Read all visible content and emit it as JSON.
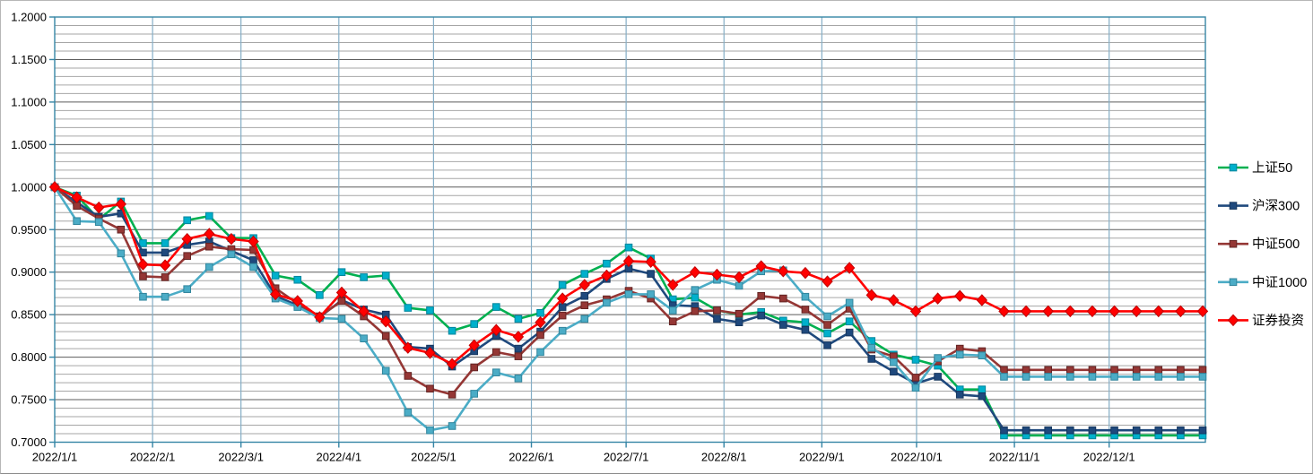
{
  "chart_data": {
    "type": "line",
    "title": "",
    "grid": true,
    "legend_position": "right",
    "y_axis": {
      "min": 0.7,
      "max": 1.2,
      "major_step": 0.05,
      "minor_step": 0.01,
      "labels": [
        "1.2000",
        "1.1500",
        "1.1000",
        "1.0500",
        "1.0000",
        "0.9500",
        "0.9000",
        "0.8500",
        "0.8000",
        "0.7500",
        "0.7000"
      ]
    },
    "x_axis": {
      "labels": [
        "2022/1/1",
        "2022/2/1",
        "2022/3/1",
        "2022/4/1",
        "2022/5/1",
        "2022/6/1",
        "2022/7/1",
        "2022/8/1",
        "2022/9/1",
        "2022/10/1",
        "2022/11/1",
        "2022/12/1"
      ],
      "month_day_offsets": [
        0,
        31,
        59,
        90,
        120,
        151,
        181,
        212,
        243,
        273,
        304,
        334
      ],
      "points": 53,
      "note": "weekly net-value points, flat after 2022/10/28"
    },
    "colors": {
      "axis": "#3585a5",
      "month_gridline": "#85aec6",
      "major_gridline": "#5b5b5b",
      "minor_gridline": "#a6a6a6",
      "label_text": "#000000"
    },
    "series": [
      {
        "name": "上证50",
        "line_color": "#00b050",
        "marker_color": "#00b0cc",
        "marker_border": "#00859c",
        "marker": "square",
        "values": [
          1.0,
          0.99,
          0.962,
          0.983,
          0.934,
          0.934,
          0.961,
          0.966,
          0.94,
          0.94,
          0.896,
          0.891,
          0.873,
          0.9,
          0.894,
          0.896,
          0.858,
          0.855,
          0.831,
          0.839,
          0.859,
          0.845,
          0.852,
          0.885,
          0.898,
          0.91,
          0.929,
          0.916,
          0.868,
          0.87,
          0.855,
          0.85,
          0.853,
          0.843,
          0.841,
          0.828,
          0.842,
          0.819,
          0.803,
          0.797,
          0.79,
          0.762,
          0.762,
          0.708,
          0.708,
          0.708,
          0.708,
          0.708,
          0.708,
          0.708,
          0.708,
          0.708,
          0.708
        ]
      },
      {
        "name": "沪深300",
        "line_color": "#1f497d",
        "marker_color": "#1f497d",
        "marker_border": "#17375e",
        "marker": "square",
        "values": [
          1.0,
          0.982,
          0.965,
          0.969,
          0.923,
          0.923,
          0.932,
          0.936,
          0.925,
          0.914,
          0.872,
          0.861,
          0.847,
          0.867,
          0.856,
          0.85,
          0.812,
          0.81,
          0.789,
          0.807,
          0.825,
          0.81,
          0.83,
          0.859,
          0.872,
          0.892,
          0.904,
          0.898,
          0.861,
          0.86,
          0.845,
          0.841,
          0.849,
          0.838,
          0.832,
          0.814,
          0.829,
          0.798,
          0.783,
          0.769,
          0.777,
          0.756,
          0.754,
          0.714,
          0.714,
          0.714,
          0.714,
          0.714,
          0.714,
          0.714,
          0.714,
          0.714,
          0.714
        ]
      },
      {
        "name": "中证500",
        "line_color": "#953735",
        "marker_color": "#953735",
        "marker_border": "#632423",
        "marker": "square",
        "values": [
          1.0,
          0.978,
          0.963,
          0.95,
          0.895,
          0.894,
          0.919,
          0.93,
          0.927,
          0.926,
          0.881,
          0.863,
          0.848,
          0.866,
          0.848,
          0.825,
          0.778,
          0.763,
          0.756,
          0.788,
          0.806,
          0.801,
          0.826,
          0.849,
          0.861,
          0.868,
          0.878,
          0.869,
          0.842,
          0.854,
          0.855,
          0.851,
          0.872,
          0.869,
          0.856,
          0.838,
          0.857,
          0.809,
          0.801,
          0.776,
          0.795,
          0.81,
          0.807,
          0.785,
          0.785,
          0.785,
          0.785,
          0.785,
          0.785,
          0.785,
          0.785,
          0.785,
          0.785
        ]
      },
      {
        "name": "中证1000",
        "line_color": "#4bacc6",
        "marker_color": "#4bacc6",
        "marker_border": "#31859c",
        "marker": "square",
        "values": [
          1.0,
          0.96,
          0.959,
          0.922,
          0.871,
          0.871,
          0.88,
          0.906,
          0.921,
          0.906,
          0.869,
          0.859,
          0.846,
          0.845,
          0.822,
          0.784,
          0.735,
          0.714,
          0.719,
          0.757,
          0.782,
          0.775,
          0.806,
          0.831,
          0.845,
          0.864,
          0.874,
          0.874,
          0.855,
          0.879,
          0.891,
          0.884,
          0.901,
          0.902,
          0.871,
          0.848,
          0.864,
          0.811,
          0.794,
          0.764,
          0.799,
          0.803,
          0.802,
          0.777,
          0.777,
          0.777,
          0.777,
          0.777,
          0.777,
          0.777,
          0.777,
          0.777,
          0.777
        ]
      },
      {
        "name": "证券投资",
        "line_color": "#ff0000",
        "marker_color": "#ff0000",
        "marker_border": "#c00000",
        "marker": "diamond",
        "values": [
          1.0,
          0.988,
          0.976,
          0.98,
          0.909,
          0.908,
          0.939,
          0.945,
          0.939,
          0.936,
          0.874,
          0.866,
          0.847,
          0.876,
          0.854,
          0.842,
          0.811,
          0.805,
          0.792,
          0.814,
          0.832,
          0.824,
          0.841,
          0.869,
          0.885,
          0.896,
          0.913,
          0.912,
          0.885,
          0.9,
          0.897,
          0.894,
          0.907,
          0.901,
          0.899,
          0.889,
          0.905,
          0.873,
          0.867,
          0.854,
          0.869,
          0.872,
          0.867,
          0.854,
          0.854,
          0.854,
          0.854,
          0.854,
          0.854,
          0.854,
          0.854,
          0.854,
          0.854
        ]
      }
    ]
  }
}
